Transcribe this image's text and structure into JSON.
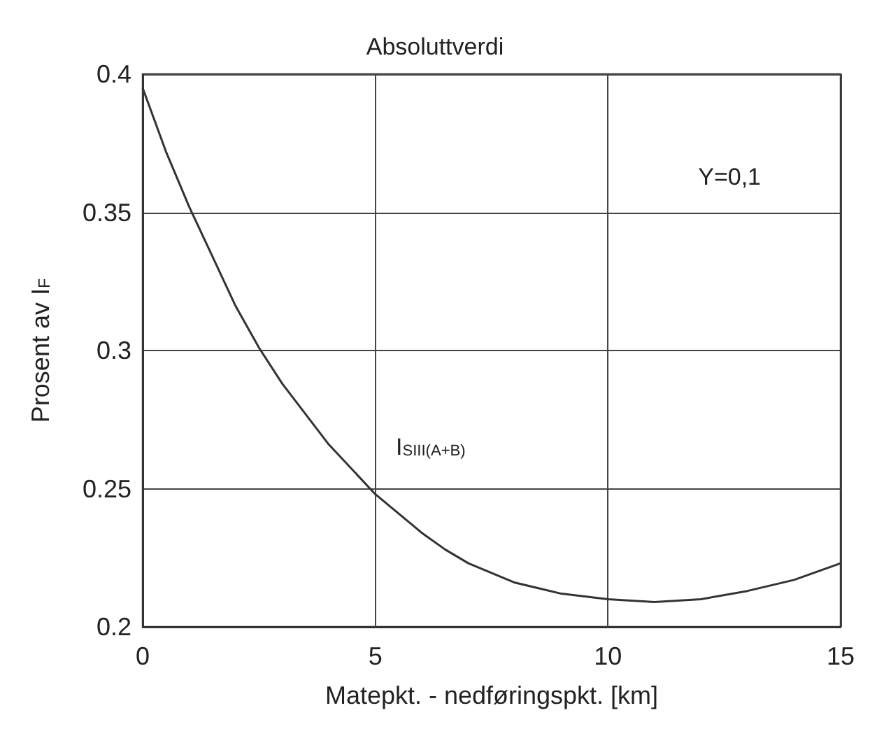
{
  "chart_data": {
    "type": "line",
    "title": "Absoluttverdi",
    "xlabel": "Matepkt. - nedføringspkt. [km]",
    "ylabel": "Prosent av I$_{F}$",
    "x": [
      0,
      0.5,
      1,
      1.5,
      2,
      2.5,
      3,
      4,
      5,
      6,
      6.5,
      7,
      8,
      9,
      10,
      11,
      12,
      13,
      14,
      15
    ],
    "series": [
      {
        "color": "#333333",
        "values": [
          0.395,
          0.372,
          0.352,
          0.334,
          0.316,
          0.301,
          0.288,
          0.266,
          0.248,
          0.234,
          0.228,
          0.223,
          0.216,
          0.212,
          0.21,
          0.209,
          0.21,
          0.213,
          0.217,
          0.223
        ]
      }
    ],
    "xlim": [
      0,
      15
    ],
    "xticks": [
      0,
      5,
      10,
      15
    ],
    "ylim": [
      0.2,
      0.4
    ],
    "yticks": [
      0.2,
      0.25,
      0.3,
      0.35,
      0.4
    ],
    "grid": true,
    "marker": "none",
    "line_style": "solid",
    "annotations": [
      "I$_{SIII(A+B)}$",
      "Y=0,1"
    ]
  }
}
